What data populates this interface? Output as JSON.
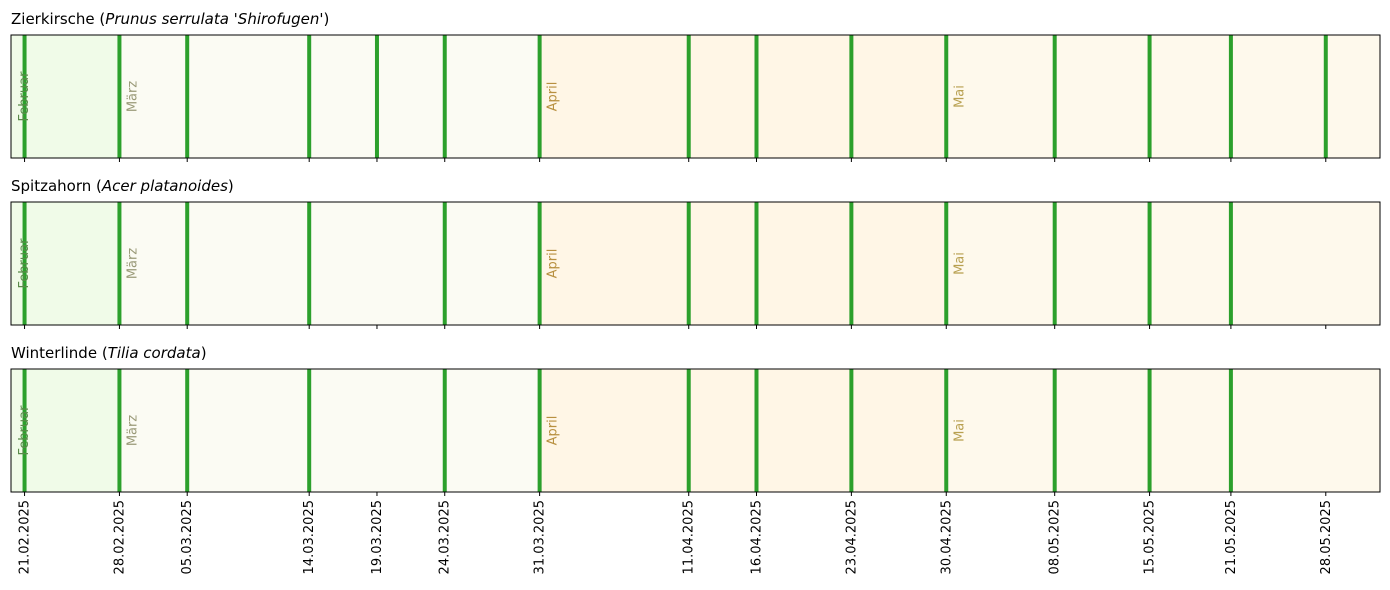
{
  "chart_data": {
    "type": "timeline",
    "x_axis": {
      "type": "date",
      "range": [
        "2025-02-20",
        "2025-06-01"
      ],
      "tick_labels": [
        "21.02.2025",
        "28.02.2025",
        "05.03.2025",
        "14.03.2025",
        "19.03.2025",
        "24.03.2025",
        "31.03.2025",
        "11.04.2025",
        "16.04.2025",
        "23.04.2025",
        "30.04.2025",
        "08.05.2025",
        "15.05.2025",
        "21.05.2025",
        "28.05.2025"
      ],
      "tick_dates": [
        "2025-02-21",
        "2025-02-28",
        "2025-03-05",
        "2025-03-14",
        "2025-03-19",
        "2025-03-24",
        "2025-03-31",
        "2025-04-11",
        "2025-04-16",
        "2025-04-23",
        "2025-04-30",
        "2025-05-08",
        "2025-05-15",
        "2025-05-21",
        "2025-05-28"
      ],
      "tick_label_rotation": "vertical"
    },
    "months": [
      {
        "label": "Februar",
        "start": "2025-02-20",
        "end": "2025-02-28",
        "color": "#f0fbe8",
        "text_color": "#5a8a4a"
      },
      {
        "label": "März",
        "start": "2025-02-28",
        "end": "2025-03-31",
        "color": "#fbfbf3",
        "text_color": "#9a9a78"
      },
      {
        "label": "April",
        "start": "2025-03-31",
        "end": "2025-04-30",
        "color": "#fff6e6",
        "text_color": "#b89040"
      },
      {
        "label": "Mai",
        "start": "2025-04-30",
        "end": "2025-06-01",
        "color": "#fef9ec",
        "text_color": "#b8a050"
      }
    ],
    "marker_color": "#2ca02c",
    "grid": false,
    "panels": [
      {
        "title_parts": [
          {
            "text": "Zierkirsche (",
            "italic": false
          },
          {
            "text": "Prunus serrulata 'Shirofugen'",
            "italic": true
          },
          {
            "text": ")",
            "italic": false
          }
        ],
        "dates": [
          "2025-02-21",
          "2025-02-28",
          "2025-03-05",
          "2025-03-14",
          "2025-03-19",
          "2025-03-24",
          "2025-03-31",
          "2025-04-11",
          "2025-04-16",
          "2025-04-23",
          "2025-04-30",
          "2025-05-08",
          "2025-05-15",
          "2025-05-21",
          "2025-05-28"
        ]
      },
      {
        "title_parts": [
          {
            "text": "Spitzahorn (",
            "italic": false
          },
          {
            "text": "Acer platanoides",
            "italic": true
          },
          {
            "text": ")",
            "italic": false
          }
        ],
        "dates": [
          "2025-02-21",
          "2025-02-28",
          "2025-03-05",
          "2025-03-14",
          "2025-03-24",
          "2025-03-31",
          "2025-04-11",
          "2025-04-16",
          "2025-04-23",
          "2025-04-30",
          "2025-05-08",
          "2025-05-15",
          "2025-05-21"
        ]
      },
      {
        "title_parts": [
          {
            "text": "Winterlinde (",
            "italic": false
          },
          {
            "text": "Tilia cordata",
            "italic": true
          },
          {
            "text": ")",
            "italic": false
          }
        ],
        "dates": [
          "2025-02-21",
          "2025-02-28",
          "2025-03-05",
          "2025-03-14",
          "2025-03-24",
          "2025-03-31",
          "2025-04-11",
          "2025-04-16",
          "2025-04-23",
          "2025-04-30",
          "2025-05-08",
          "2025-05-15",
          "2025-05-21"
        ]
      }
    ]
  }
}
